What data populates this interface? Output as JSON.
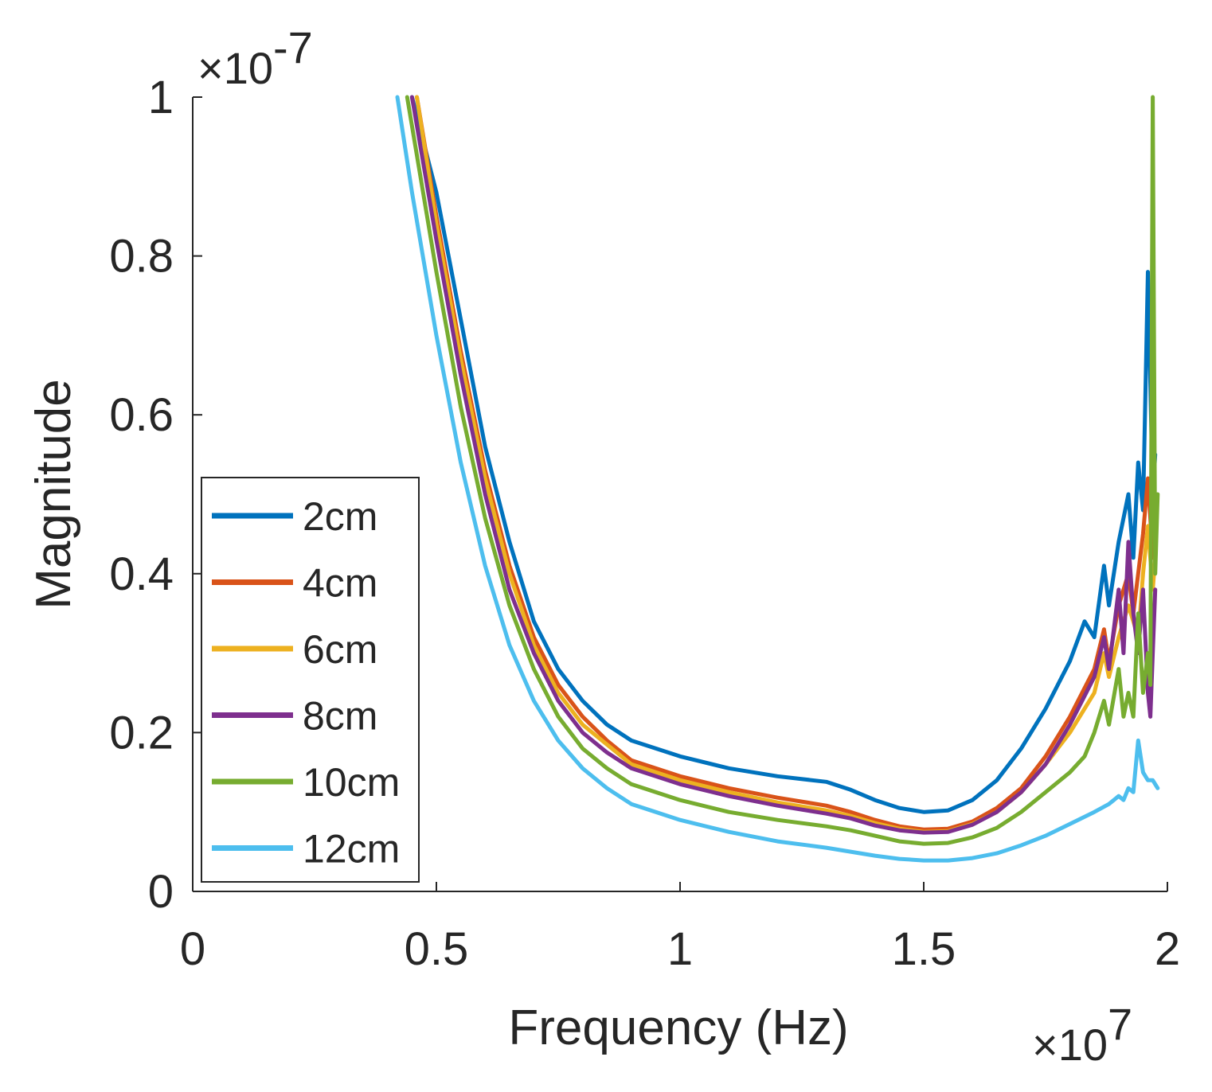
{
  "chart_data": {
    "type": "line",
    "title": "",
    "xlabel": "Frequency (Hz)",
    "ylabel": "Magnitude",
    "x_multiplier": "×10",
    "x_exponent": "7",
    "y_multiplier": "×10",
    "y_exponent": "-7",
    "xlim": [
      0,
      2
    ],
    "ylim": [
      0,
      1
    ],
    "x_ticks": [
      0,
      0.5,
      1,
      1.5,
      2
    ],
    "x_tick_labels": [
      "0",
      "0.5",
      "1",
      "1.5",
      "2"
    ],
    "y_ticks": [
      0,
      0.2,
      0.4,
      0.6,
      0.8,
      1
    ],
    "y_tick_labels": [
      "0",
      "0.2",
      "0.4",
      "0.6",
      "0.8",
      "1"
    ],
    "grid": false,
    "legend_position": "left-middle",
    "series": [
      {
        "name": "2cm",
        "color": "#0072BD",
        "points": [
          [
            0.45,
            1.0
          ],
          [
            0.5,
            0.88
          ],
          [
            0.55,
            0.72
          ],
          [
            0.6,
            0.56
          ],
          [
            0.65,
            0.44
          ],
          [
            0.7,
            0.34
          ],
          [
            0.75,
            0.28
          ],
          [
            0.8,
            0.24
          ],
          [
            0.85,
            0.21
          ],
          [
            0.9,
            0.19
          ],
          [
            1.0,
            0.17
          ],
          [
            1.1,
            0.155
          ],
          [
            1.2,
            0.145
          ],
          [
            1.3,
            0.138
          ],
          [
            1.35,
            0.128
          ],
          [
            1.4,
            0.115
          ],
          [
            1.45,
            0.105
          ],
          [
            1.5,
            0.1
          ],
          [
            1.55,
            0.102
          ],
          [
            1.6,
            0.115
          ],
          [
            1.65,
            0.14
          ],
          [
            1.7,
            0.18
          ],
          [
            1.75,
            0.23
          ],
          [
            1.8,
            0.29
          ],
          [
            1.83,
            0.34
          ],
          [
            1.85,
            0.32
          ],
          [
            1.87,
            0.41
          ],
          [
            1.88,
            0.36
          ],
          [
            1.9,
            0.44
          ],
          [
            1.92,
            0.5
          ],
          [
            1.93,
            0.42
          ],
          [
            1.94,
            0.54
          ],
          [
            1.95,
            0.48
          ],
          [
            1.96,
            0.78
          ],
          [
            1.97,
            0.5
          ],
          [
            1.975,
            0.55
          ]
        ]
      },
      {
        "name": "4cm",
        "color": "#D95319",
        "points": [
          [
            0.46,
            1.0
          ],
          [
            0.5,
            0.85
          ],
          [
            0.55,
            0.68
          ],
          [
            0.6,
            0.53
          ],
          [
            0.65,
            0.41
          ],
          [
            0.7,
            0.32
          ],
          [
            0.75,
            0.26
          ],
          [
            0.8,
            0.22
          ],
          [
            0.85,
            0.19
          ],
          [
            0.9,
            0.165
          ],
          [
            1.0,
            0.145
          ],
          [
            1.1,
            0.13
          ],
          [
            1.2,
            0.118
          ],
          [
            1.3,
            0.108
          ],
          [
            1.35,
            0.1
          ],
          [
            1.4,
            0.09
          ],
          [
            1.45,
            0.082
          ],
          [
            1.5,
            0.078
          ],
          [
            1.55,
            0.079
          ],
          [
            1.6,
            0.088
          ],
          [
            1.65,
            0.105
          ],
          [
            1.7,
            0.13
          ],
          [
            1.75,
            0.17
          ],
          [
            1.8,
            0.22
          ],
          [
            1.85,
            0.28
          ],
          [
            1.87,
            0.33
          ],
          [
            1.88,
            0.29
          ],
          [
            1.9,
            0.36
          ],
          [
            1.92,
            0.4
          ],
          [
            1.93,
            0.35
          ],
          [
            1.95,
            0.45
          ],
          [
            1.96,
            0.52
          ],
          [
            1.97,
            0.42
          ],
          [
            1.975,
            0.48
          ]
        ]
      },
      {
        "name": "6cm",
        "color": "#EDB120",
        "points": [
          [
            0.46,
            1.0
          ],
          [
            0.5,
            0.84
          ],
          [
            0.55,
            0.67
          ],
          [
            0.6,
            0.52
          ],
          [
            0.65,
            0.4
          ],
          [
            0.7,
            0.31
          ],
          [
            0.75,
            0.25
          ],
          [
            0.8,
            0.21
          ],
          [
            0.85,
            0.185
          ],
          [
            0.9,
            0.16
          ],
          [
            1.0,
            0.14
          ],
          [
            1.1,
            0.125
          ],
          [
            1.2,
            0.112
          ],
          [
            1.3,
            0.102
          ],
          [
            1.35,
            0.095
          ],
          [
            1.4,
            0.086
          ],
          [
            1.45,
            0.079
          ],
          [
            1.5,
            0.075
          ],
          [
            1.55,
            0.076
          ],
          [
            1.6,
            0.085
          ],
          [
            1.65,
            0.1
          ],
          [
            1.7,
            0.125
          ],
          [
            1.75,
            0.16
          ],
          [
            1.8,
            0.2
          ],
          [
            1.85,
            0.25
          ],
          [
            1.87,
            0.3
          ],
          [
            1.88,
            0.27
          ],
          [
            1.9,
            0.32
          ],
          [
            1.92,
            0.36
          ],
          [
            1.94,
            0.32
          ],
          [
            1.95,
            0.4
          ],
          [
            1.96,
            0.46
          ],
          [
            1.97,
            0.38
          ],
          [
            1.975,
            0.42
          ]
        ]
      },
      {
        "name": "8cm",
        "color": "#7E2F8E",
        "points": [
          [
            0.45,
            1.0
          ],
          [
            0.5,
            0.82
          ],
          [
            0.55,
            0.65
          ],
          [
            0.6,
            0.5
          ],
          [
            0.65,
            0.38
          ],
          [
            0.7,
            0.3
          ],
          [
            0.75,
            0.24
          ],
          [
            0.8,
            0.2
          ],
          [
            0.85,
            0.175
          ],
          [
            0.9,
            0.155
          ],
          [
            1.0,
            0.135
          ],
          [
            1.1,
            0.12
          ],
          [
            1.2,
            0.108
          ],
          [
            1.3,
            0.098
          ],
          [
            1.35,
            0.092
          ],
          [
            1.4,
            0.083
          ],
          [
            1.45,
            0.077
          ],
          [
            1.5,
            0.074
          ],
          [
            1.55,
            0.075
          ],
          [
            1.6,
            0.084
          ],
          [
            1.65,
            0.1
          ],
          [
            1.7,
            0.125
          ],
          [
            1.75,
            0.16
          ],
          [
            1.8,
            0.21
          ],
          [
            1.85,
            0.27
          ],
          [
            1.87,
            0.32
          ],
          [
            1.88,
            0.28
          ],
          [
            1.9,
            0.38
          ],
          [
            1.91,
            0.3
          ],
          [
            1.92,
            0.44
          ],
          [
            1.93,
            0.35
          ],
          [
            1.94,
            0.3
          ],
          [
            1.95,
            0.38
          ],
          [
            1.96,
            0.25
          ],
          [
            1.965,
            0.22
          ],
          [
            1.97,
            0.3
          ],
          [
            1.975,
            0.38
          ]
        ]
      },
      {
        "name": "10cm",
        "color": "#77AC30",
        "points": [
          [
            0.44,
            1.0
          ],
          [
            0.5,
            0.78
          ],
          [
            0.55,
            0.61
          ],
          [
            0.6,
            0.47
          ],
          [
            0.65,
            0.36
          ],
          [
            0.7,
            0.28
          ],
          [
            0.75,
            0.22
          ],
          [
            0.8,
            0.18
          ],
          [
            0.85,
            0.155
          ],
          [
            0.9,
            0.135
          ],
          [
            1.0,
            0.115
          ],
          [
            1.1,
            0.1
          ],
          [
            1.2,
            0.09
          ],
          [
            1.3,
            0.082
          ],
          [
            1.35,
            0.077
          ],
          [
            1.4,
            0.07
          ],
          [
            1.45,
            0.063
          ],
          [
            1.5,
            0.06
          ],
          [
            1.55,
            0.061
          ],
          [
            1.6,
            0.068
          ],
          [
            1.65,
            0.08
          ],
          [
            1.7,
            0.1
          ],
          [
            1.75,
            0.125
          ],
          [
            1.8,
            0.15
          ],
          [
            1.83,
            0.17
          ],
          [
            1.85,
            0.2
          ],
          [
            1.87,
            0.24
          ],
          [
            1.88,
            0.21
          ],
          [
            1.9,
            0.28
          ],
          [
            1.91,
            0.22
          ],
          [
            1.92,
            0.25
          ],
          [
            1.93,
            0.22
          ],
          [
            1.94,
            0.35
          ],
          [
            1.95,
            0.25
          ],
          [
            1.96,
            0.3
          ],
          [
            1.965,
            0.26
          ],
          [
            1.97,
            1.0
          ],
          [
            1.975,
            0.4
          ],
          [
            1.98,
            0.5
          ]
        ]
      },
      {
        "name": "12cm",
        "color": "#4DBEEE",
        "points": [
          [
            0.42,
            1.0
          ],
          [
            0.45,
            0.88
          ],
          [
            0.5,
            0.7
          ],
          [
            0.55,
            0.54
          ],
          [
            0.6,
            0.41
          ],
          [
            0.65,
            0.31
          ],
          [
            0.7,
            0.24
          ],
          [
            0.75,
            0.19
          ],
          [
            0.8,
            0.155
          ],
          [
            0.85,
            0.13
          ],
          [
            0.9,
            0.11
          ],
          [
            1.0,
            0.09
          ],
          [
            1.1,
            0.075
          ],
          [
            1.2,
            0.063
          ],
          [
            1.3,
            0.055
          ],
          [
            1.35,
            0.05
          ],
          [
            1.4,
            0.045
          ],
          [
            1.45,
            0.041
          ],
          [
            1.5,
            0.039
          ],
          [
            1.55,
            0.039
          ],
          [
            1.6,
            0.042
          ],
          [
            1.65,
            0.048
          ],
          [
            1.7,
            0.058
          ],
          [
            1.75,
            0.07
          ],
          [
            1.8,
            0.085
          ],
          [
            1.85,
            0.1
          ],
          [
            1.88,
            0.11
          ],
          [
            1.9,
            0.12
          ],
          [
            1.91,
            0.115
          ],
          [
            1.92,
            0.13
          ],
          [
            1.93,
            0.125
          ],
          [
            1.94,
            0.19
          ],
          [
            1.95,
            0.15
          ],
          [
            1.96,
            0.14
          ],
          [
            1.97,
            0.14
          ],
          [
            1.98,
            0.13
          ]
        ]
      }
    ]
  }
}
